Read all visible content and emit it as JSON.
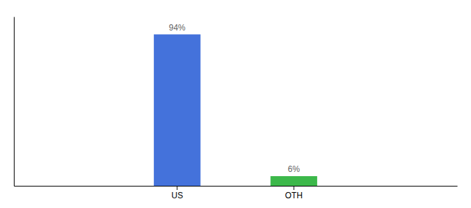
{
  "chart_data": {
    "type": "bar",
    "categories": [
      "US",
      "OTH"
    ],
    "values": [
      94,
      6
    ],
    "colors": [
      "#4472db",
      "#3cb84a"
    ],
    "value_labels": [
      "94%",
      "6%"
    ],
    "data_labels": true,
    "ylim": [
      0,
      105
    ],
    "yticks": [],
    "tick_labels": "x"
  }
}
